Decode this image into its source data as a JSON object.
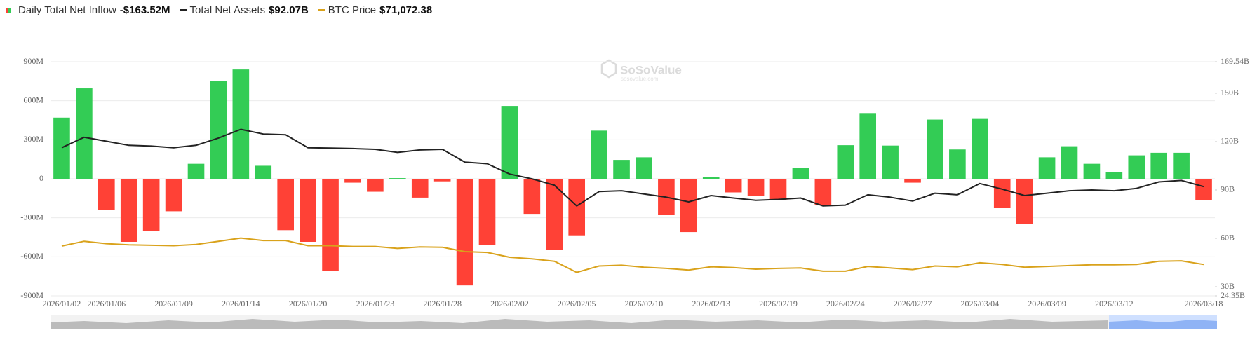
{
  "chart_data": {
    "type": "bar",
    "watermark": {
      "name": "SoSoValue",
      "url": "sosovalue.com"
    },
    "categories": [
      "2026/01/02",
      null,
      "2026/01/06",
      null,
      null,
      "2026/01/09",
      null,
      null,
      "2026/01/14",
      null,
      null,
      "2026/01/20",
      null,
      null,
      "2026/01/23",
      null,
      null,
      "2026/01/28",
      null,
      null,
      "2026/02/02",
      null,
      null,
      "2026/02/05",
      null,
      null,
      "2026/02/10",
      null,
      null,
      "2026/02/13",
      null,
      null,
      "2026/02/19",
      null,
      null,
      "2026/02/24",
      null,
      null,
      "2026/02/27",
      null,
      null,
      "2026/03/04",
      null,
      null,
      "2026/03/09",
      null,
      null,
      "2026/03/12",
      null,
      null,
      null,
      "2026/03/18"
    ],
    "series": [
      {
        "name": "Daily Total Net Inflow",
        "type": "bar",
        "axis": "y",
        "color": "#33cc55",
        "negative_color": "#ff4136",
        "latest_label": "-$163.52M",
        "values": [
          470,
          695,
          -240,
          -485,
          -400,
          -250,
          115,
          750,
          840,
          100,
          -395,
          -485,
          -710,
          -30,
          -100,
          5,
          -145,
          -20,
          -820,
          -510,
          560,
          -270,
          -545,
          -435,
          370,
          145,
          165,
          -275,
          -410,
          15,
          -105,
          -130,
          -165,
          85,
          -205,
          258,
          505,
          255,
          -30,
          455,
          225,
          460,
          -225,
          -345,
          165,
          250,
          115,
          50,
          180,
          200,
          200,
          -163.52
        ]
      },
      {
        "name": "Total Net Assets",
        "type": "line",
        "axis": "y2",
        "color": "#222222",
        "latest_label": "$92.07B",
        "values": [
          116.2,
          122.7,
          120.2,
          117.7,
          117.2,
          116.2,
          117.7,
          122.2,
          127.6,
          124.7,
          124.2,
          116.2,
          116,
          115.7,
          115.2,
          113.3,
          114.8,
          115.2,
          107.3,
          106.3,
          99.9,
          96.9,
          93,
          80.1,
          89,
          89.5,
          87.5,
          85.5,
          82.6,
          86.5,
          85,
          83.6,
          84.1,
          85,
          80.1,
          80.6,
          87,
          85.5,
          83.1,
          88,
          87,
          94,
          90.5,
          86.5,
          88,
          89.5,
          90,
          89.5,
          91,
          95,
          95.9,
          92.07
        ]
      },
      {
        "name": "BTC Price",
        "type": "line",
        "axis": "y3",
        "color": "#d9a21b",
        "latest_label": "$71,072.38",
        "values": [
          84900,
          88500,
          86700,
          85800,
          85500,
          85200,
          86100,
          88500,
          90900,
          89100,
          89100,
          85200,
          85200,
          84600,
          84600,
          83100,
          84300,
          84000,
          80700,
          80100,
          76500,
          75300,
          73500,
          65100,
          69900,
          70500,
          69000,
          68100,
          66900,
          69300,
          68700,
          67500,
          68100,
          68400,
          66000,
          66000,
          69600,
          68400,
          67200,
          69900,
          69300,
          72300,
          71100,
          69000,
          69600,
          70200,
          70800,
          70800,
          71100,
          73500,
          73800,
          71072.38
        ]
      }
    ],
    "ylim": [
      -900,
      900
    ],
    "yticks": [
      {
        "value": -900,
        "label": "-900M"
      },
      {
        "value": -600,
        "label": "-600M"
      },
      {
        "value": -300,
        "label": "-300M"
      },
      0,
      {
        "value": 300,
        "label": "300M"
      },
      {
        "value": 600,
        "label": "600M"
      },
      {
        "value": 900,
        "label": "900M"
      }
    ],
    "y2lim": [
      24.35,
      169.54
    ],
    "y2ticks": [
      {
        "value": 24.35,
        "label": "24.35B"
      },
      {
        "value": 30,
        "label": "30B"
      },
      {
        "value": 60,
        "label": "60B"
      },
      {
        "value": 90,
        "label": "90B"
      },
      {
        "value": 120,
        "label": "120B"
      },
      {
        "value": 150,
        "label": "150B"
      },
      {
        "value": 169.54,
        "label": "169.54B"
      }
    ],
    "y3lim": [
      47500,
      223500
    ],
    "grid": true
  }
}
